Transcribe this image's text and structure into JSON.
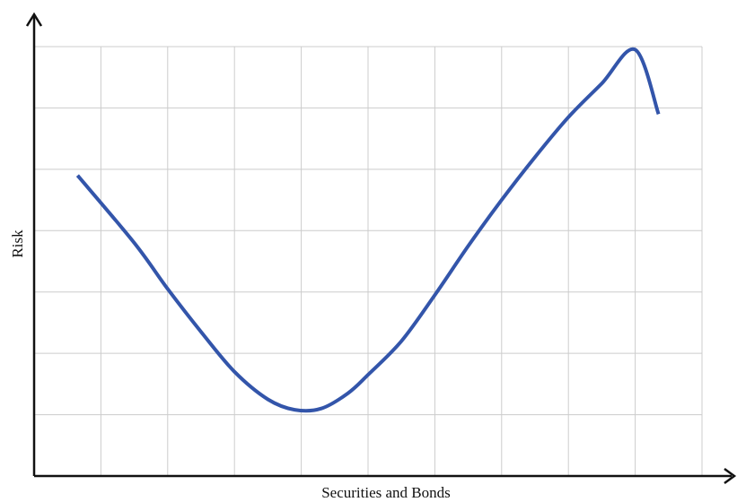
{
  "chart_data": {
    "type": "line",
    "title": "",
    "xlabel": "Securities and Bonds",
    "ylabel": "Risk",
    "grid": true,
    "xlim": [
      0,
      10
    ],
    "ylim": [
      0,
      7
    ],
    "series": [
      {
        "color": "#3355aa",
        "x": [
          0.65,
          1.5,
          2.0,
          2.5,
          3.0,
          3.5,
          3.9,
          4.3,
          4.7,
          5.0,
          5.5,
          6.0,
          6.5,
          7.0,
          7.5,
          8.0,
          8.5,
          9.0,
          9.35
        ],
        "y": [
          4.9,
          3.8,
          3.05,
          2.35,
          1.7,
          1.25,
          1.08,
          1.1,
          1.35,
          1.65,
          2.2,
          2.95,
          3.75,
          4.5,
          5.2,
          5.85,
          6.4,
          6.95,
          5.9
        ]
      }
    ]
  },
  "colors": {
    "axis": "#111111",
    "grid": "#cccccc",
    "line": "#3355aa"
  }
}
